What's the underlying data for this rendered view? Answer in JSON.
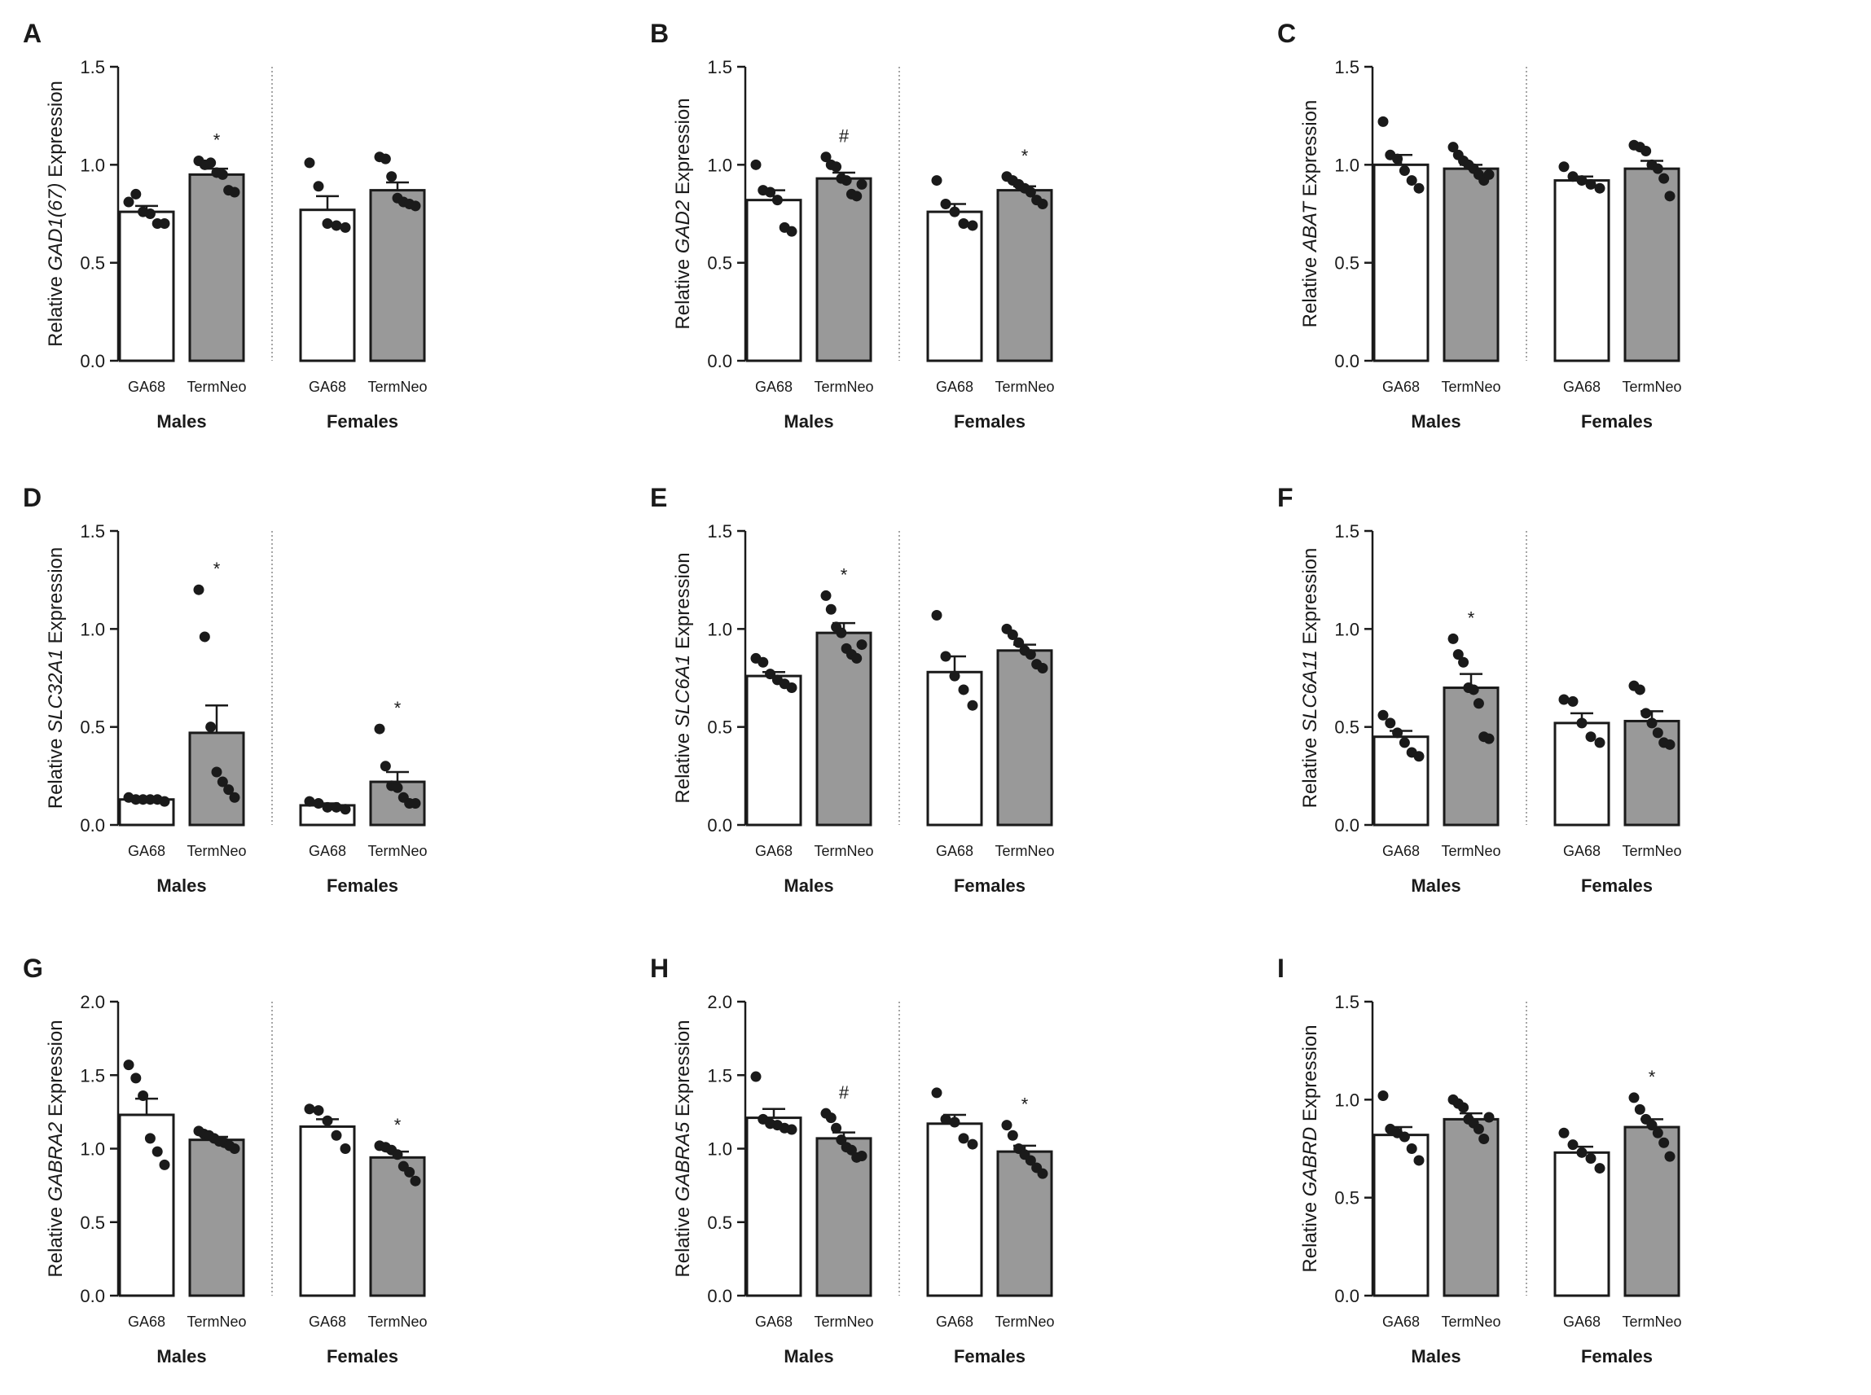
{
  "figure": {
    "bar_colors": {
      "GA68": "#ffffff",
      "TermNeo": "#999999"
    },
    "ink": "#1a1a1a"
  },
  "panels": [
    {
      "letter": "A",
      "ylabel_pre": "Relative ",
      "ylabel_gene": "GAD1(67)",
      "ylabel_post": " Expression",
      "ymax": 1.5,
      "ticks": [
        0.0,
        0.5,
        1.0,
        1.5
      ],
      "tick_labels": [
        "0.0",
        "0.5",
        "1.0",
        "1.5"
      ],
      "group_labels": [
        "Males",
        "Females"
      ],
      "bar_labels": [
        "GA68",
        "TermNeo",
        "GA68",
        "TermNeo"
      ],
      "bars": [
        {
          "mean": 0.76,
          "sem": 0.03,
          "points": [
            0.81,
            0.85,
            0.76,
            0.75,
            0.7,
            0.7
          ]
        },
        {
          "mean": 0.95,
          "sem": 0.03,
          "points": [
            1.02,
            1.0,
            1.01,
            0.96,
            0.95,
            0.87,
            0.86
          ],
          "mark": "*"
        },
        {
          "mean": 0.77,
          "sem": 0.07,
          "points": [
            1.01,
            0.89,
            0.7,
            0.69,
            0.68
          ]
        },
        {
          "mean": 0.87,
          "sem": 0.04,
          "points": [
            1.04,
            1.03,
            0.94,
            0.83,
            0.81,
            0.8,
            0.79
          ]
        }
      ]
    },
    {
      "letter": "B",
      "ylabel_pre": "Relative ",
      "ylabel_gene": "GAD2",
      "ylabel_post": " Expression",
      "ymax": 1.5,
      "ticks": [
        0.0,
        0.5,
        1.0,
        1.5
      ],
      "tick_labels": [
        "0.0",
        "0.5",
        "1.0",
        "1.5"
      ],
      "group_labels": [
        "Males",
        "Females"
      ],
      "bar_labels": [
        "GA68",
        "TermNeo",
        "GA68",
        "TermNeo"
      ],
      "bars": [
        {
          "mean": 0.82,
          "sem": 0.05,
          "points": [
            1.0,
            0.87,
            0.86,
            0.82,
            0.68,
            0.66
          ]
        },
        {
          "mean": 0.93,
          "sem": 0.03,
          "points": [
            1.04,
            1.0,
            0.99,
            0.93,
            0.92,
            0.85,
            0.84,
            0.9
          ],
          "mark": "#"
        },
        {
          "mean": 0.76,
          "sem": 0.04,
          "points": [
            0.92,
            0.8,
            0.76,
            0.7,
            0.69
          ]
        },
        {
          "mean": 0.87,
          "sem": 0.02,
          "points": [
            0.94,
            0.92,
            0.9,
            0.88,
            0.86,
            0.82,
            0.8
          ],
          "mark": "*"
        }
      ]
    },
    {
      "letter": "C",
      "ylabel_pre": "Relative ",
      "ylabel_gene": "ABAT",
      "ylabel_post": " Expression",
      "ymax": 1.5,
      "ticks": [
        0.0,
        0.5,
        1.0,
        1.5
      ],
      "tick_labels": [
        "0.0",
        "0.5",
        "1.0",
        "1.5"
      ],
      "group_labels": [
        "Males",
        "Females"
      ],
      "bar_labels": [
        "GA68",
        "TermNeo",
        "GA68",
        "TermNeo"
      ],
      "bars": [
        {
          "mean": 1.0,
          "sem": 0.05,
          "points": [
            1.22,
            1.05,
            1.03,
            0.97,
            0.92,
            0.88
          ]
        },
        {
          "mean": 0.98,
          "sem": 0.02,
          "points": [
            1.09,
            1.05,
            1.02,
            1.0,
            0.98,
            0.95,
            0.92,
            0.95
          ]
        },
        {
          "mean": 0.92,
          "sem": 0.02,
          "points": [
            0.99,
            0.94,
            0.92,
            0.9,
            0.88
          ]
        },
        {
          "mean": 0.98,
          "sem": 0.04,
          "points": [
            1.1,
            1.09,
            1.07,
            1.0,
            0.98,
            0.93,
            0.84
          ]
        }
      ]
    },
    {
      "letter": "D",
      "ylabel_pre": "Relative ",
      "ylabel_gene": "SLC32A1",
      "ylabel_post": " Expression",
      "ymax": 1.5,
      "ticks": [
        0.0,
        0.5,
        1.0,
        1.5
      ],
      "tick_labels": [
        "0.0",
        "0.5",
        "1.0",
        "1.5"
      ],
      "group_labels": [
        "Males",
        "Females"
      ],
      "bar_labels": [
        "GA68",
        "TermNeo",
        "GA68",
        "TermNeo"
      ],
      "bars": [
        {
          "mean": 0.13,
          "sem": 0.01,
          "points": [
            0.14,
            0.13,
            0.13,
            0.13,
            0.13,
            0.12
          ]
        },
        {
          "mean": 0.47,
          "sem": 0.14,
          "points": [
            1.2,
            0.96,
            0.5,
            0.27,
            0.22,
            0.18,
            0.14
          ],
          "mark": "*"
        },
        {
          "mean": 0.1,
          "sem": 0.01,
          "points": [
            0.12,
            0.11,
            0.09,
            0.09,
            0.08
          ]
        },
        {
          "mean": 0.22,
          "sem": 0.05,
          "points": [
            0.49,
            0.3,
            0.2,
            0.19,
            0.14,
            0.11,
            0.11
          ],
          "mark": "*"
        }
      ]
    },
    {
      "letter": "E",
      "ylabel_pre": "Relative ",
      "ylabel_gene": "SLC6A1",
      "ylabel_post": " Expression",
      "ymax": 1.5,
      "ticks": [
        0.0,
        0.5,
        1.0,
        1.5
      ],
      "tick_labels": [
        "0.0",
        "0.5",
        "1.0",
        "1.5"
      ],
      "group_labels": [
        "Males",
        "Females"
      ],
      "bar_labels": [
        "GA68",
        "TermNeo",
        "GA68",
        "TermNeo"
      ],
      "bars": [
        {
          "mean": 0.76,
          "sem": 0.02,
          "points": [
            0.85,
            0.83,
            0.77,
            0.74,
            0.72,
            0.7
          ]
        },
        {
          "mean": 0.98,
          "sem": 0.05,
          "points": [
            1.17,
            1.1,
            1.01,
            0.98,
            0.9,
            0.87,
            0.85,
            0.92
          ],
          "mark": "*"
        },
        {
          "mean": 0.78,
          "sem": 0.08,
          "points": [
            1.07,
            0.86,
            0.76,
            0.69,
            0.61
          ]
        },
        {
          "mean": 0.89,
          "sem": 0.03,
          "points": [
            1.0,
            0.97,
            0.93,
            0.89,
            0.87,
            0.82,
            0.8
          ]
        }
      ]
    },
    {
      "letter": "F",
      "ylabel_pre": "Relative ",
      "ylabel_gene": "SLC6A11",
      "ylabel_post": " Expression",
      "ymax": 1.5,
      "ticks": [
        0.0,
        0.5,
        1.0,
        1.5
      ],
      "tick_labels": [
        "0.0",
        "0.5",
        "1.0",
        "1.5"
      ],
      "group_labels": [
        "Males",
        "Females"
      ],
      "bar_labels": [
        "GA68",
        "TermNeo",
        "GA68",
        "TermNeo"
      ],
      "bars": [
        {
          "mean": 0.45,
          "sem": 0.03,
          "points": [
            0.56,
            0.52,
            0.47,
            0.42,
            0.37,
            0.35
          ]
        },
        {
          "mean": 0.7,
          "sem": 0.07,
          "points": [
            0.95,
            0.87,
            0.83,
            0.7,
            0.69,
            0.62,
            0.45,
            0.44
          ],
          "mark": "*"
        },
        {
          "mean": 0.52,
          "sem": 0.05,
          "points": [
            0.64,
            0.63,
            0.52,
            0.45,
            0.42
          ]
        },
        {
          "mean": 0.53,
          "sem": 0.05,
          "points": [
            0.71,
            0.69,
            0.57,
            0.52,
            0.47,
            0.42,
            0.41
          ]
        }
      ]
    },
    {
      "letter": "G",
      "ylabel_pre": "Relative ",
      "ylabel_gene": "GABRA2",
      "ylabel_post": " Expression",
      "ymax": 2.0,
      "ticks": [
        0.0,
        0.5,
        1.0,
        1.5,
        2.0
      ],
      "tick_labels": [
        "0.0",
        "0.5",
        "1.0",
        "1.5",
        "2.0"
      ],
      "group_labels": [
        "Males",
        "Females"
      ],
      "bar_labels": [
        "GA68",
        "TermNeo",
        "GA68",
        "TermNeo"
      ],
      "bars": [
        {
          "mean": 1.23,
          "sem": 0.11,
          "points": [
            1.57,
            1.48,
            1.36,
            1.07,
            0.98,
            0.89
          ]
        },
        {
          "mean": 1.06,
          "sem": 0.02,
          "points": [
            1.12,
            1.1,
            1.09,
            1.07,
            1.05,
            1.04,
            1.02,
            1.0
          ]
        },
        {
          "mean": 1.15,
          "sem": 0.05,
          "points": [
            1.27,
            1.26,
            1.19,
            1.09,
            1.0
          ]
        },
        {
          "mean": 0.94,
          "sem": 0.04,
          "points": [
            1.02,
            1.01,
            0.99,
            0.96,
            0.88,
            0.84,
            0.78
          ],
          "mark": "*"
        }
      ]
    },
    {
      "letter": "H",
      "ylabel_pre": "Relative ",
      "ylabel_gene": "GABRA5",
      "ylabel_post": " Expression",
      "ymax": 2.0,
      "ticks": [
        0.0,
        0.5,
        1.0,
        1.5,
        2.0
      ],
      "tick_labels": [
        "0.0",
        "0.5",
        "1.0",
        "1.5",
        "2.0"
      ],
      "group_labels": [
        "Males",
        "Females"
      ],
      "bar_labels": [
        "GA68",
        "TermNeo",
        "GA68",
        "TermNeo"
      ],
      "bars": [
        {
          "mean": 1.21,
          "sem": 0.06,
          "points": [
            1.49,
            1.2,
            1.17,
            1.16,
            1.14,
            1.13
          ]
        },
        {
          "mean": 1.07,
          "sem": 0.04,
          "points": [
            1.24,
            1.21,
            1.14,
            1.06,
            1.01,
            0.99,
            0.94,
            0.95
          ],
          "mark": "#"
        },
        {
          "mean": 1.17,
          "sem": 0.06,
          "points": [
            1.38,
            1.2,
            1.18,
            1.07,
            1.03
          ]
        },
        {
          "mean": 0.98,
          "sem": 0.04,
          "points": [
            1.16,
            1.09,
            1.0,
            0.96,
            0.92,
            0.87,
            0.83
          ],
          "mark": "*"
        }
      ]
    },
    {
      "letter": "I",
      "ylabel_pre": "Relative ",
      "ylabel_gene": "GABRD",
      "ylabel_post": " Expression",
      "ymax": 1.5,
      "ticks": [
        0.0,
        0.5,
        1.0,
        1.5
      ],
      "tick_labels": [
        "0.0",
        "0.5",
        "1.0",
        "1.5"
      ],
      "group_labels": [
        "Males",
        "Females"
      ],
      "bar_labels": [
        "GA68",
        "TermNeo",
        "GA68",
        "TermNeo"
      ],
      "bars": [
        {
          "mean": 0.82,
          "sem": 0.04,
          "points": [
            1.02,
            0.85,
            0.83,
            0.81,
            0.75,
            0.69
          ]
        },
        {
          "mean": 0.9,
          "sem": 0.03,
          "points": [
            1.0,
            0.98,
            0.96,
            0.9,
            0.88,
            0.85,
            0.8,
            0.91
          ]
        },
        {
          "mean": 0.73,
          "sem": 0.03,
          "points": [
            0.83,
            0.77,
            0.73,
            0.7,
            0.65
          ]
        },
        {
          "mean": 0.86,
          "sem": 0.04,
          "points": [
            1.01,
            0.95,
            0.9,
            0.87,
            0.83,
            0.78,
            0.71
          ],
          "mark": "*"
        }
      ]
    }
  ],
  "chart_data": [
    {
      "type": "bar",
      "panel": "A",
      "ylabel": "Relative GAD1(67) Expression",
      "categories": [
        "Males GA68",
        "Males TermNeo",
        "Females GA68",
        "Females TermNeo"
      ],
      "values": [
        0.76,
        0.95,
        0.77,
        0.87
      ],
      "ylim": [
        0,
        1.5
      ]
    },
    {
      "type": "bar",
      "panel": "B",
      "ylabel": "Relative GAD2 Expression",
      "categories": [
        "Males GA68",
        "Males TermNeo",
        "Females GA68",
        "Females TermNeo"
      ],
      "values": [
        0.82,
        0.93,
        0.76,
        0.87
      ],
      "ylim": [
        0,
        1.5
      ]
    },
    {
      "type": "bar",
      "panel": "C",
      "ylabel": "Relative ABAT Expression",
      "categories": [
        "Males GA68",
        "Males TermNeo",
        "Females GA68",
        "Females TermNeo"
      ],
      "values": [
        1.0,
        0.98,
        0.92,
        0.98
      ],
      "ylim": [
        0,
        1.5
      ]
    },
    {
      "type": "bar",
      "panel": "D",
      "ylabel": "Relative SLC32A1 Expression",
      "categories": [
        "Males GA68",
        "Males TermNeo",
        "Females GA68",
        "Females TermNeo"
      ],
      "values": [
        0.13,
        0.47,
        0.1,
        0.22
      ],
      "ylim": [
        0,
        1.5
      ]
    },
    {
      "type": "bar",
      "panel": "E",
      "ylabel": "Relative SLC6A1 Expression",
      "categories": [
        "Males GA68",
        "Males TermNeo",
        "Females GA68",
        "Females TermNeo"
      ],
      "values": [
        0.76,
        0.98,
        0.78,
        0.89
      ],
      "ylim": [
        0,
        1.5
      ]
    },
    {
      "type": "bar",
      "panel": "F",
      "ylabel": "Relative SLC6A11 Expression",
      "categories": [
        "Males GA68",
        "Males TermNeo",
        "Females GA68",
        "Females TermNeo"
      ],
      "values": [
        0.45,
        0.7,
        0.52,
        0.53
      ],
      "ylim": [
        0,
        1.5
      ]
    },
    {
      "type": "bar",
      "panel": "G",
      "ylabel": "Relative GABRA2 Expression",
      "categories": [
        "Males GA68",
        "Males TermNeo",
        "Females GA68",
        "Females TermNeo"
      ],
      "values": [
        1.23,
        1.06,
        1.15,
        0.94
      ],
      "ylim": [
        0,
        2.0
      ]
    },
    {
      "type": "bar",
      "panel": "H",
      "ylabel": "Relative GABRA5 Expression",
      "categories": [
        "Males GA68",
        "Males TermNeo",
        "Females GA68",
        "Females TermNeo"
      ],
      "values": [
        1.21,
        1.07,
        1.17,
        0.98
      ],
      "ylim": [
        0,
        2.0
      ]
    },
    {
      "type": "bar",
      "panel": "I",
      "ylabel": "Relative GABRD Expression",
      "categories": [
        "Males GA68",
        "Males TermNeo",
        "Females GA68",
        "Females TermNeo"
      ],
      "values": [
        0.82,
        0.9,
        0.73,
        0.86
      ],
      "ylim": [
        0,
        1.5
      ]
    }
  ]
}
